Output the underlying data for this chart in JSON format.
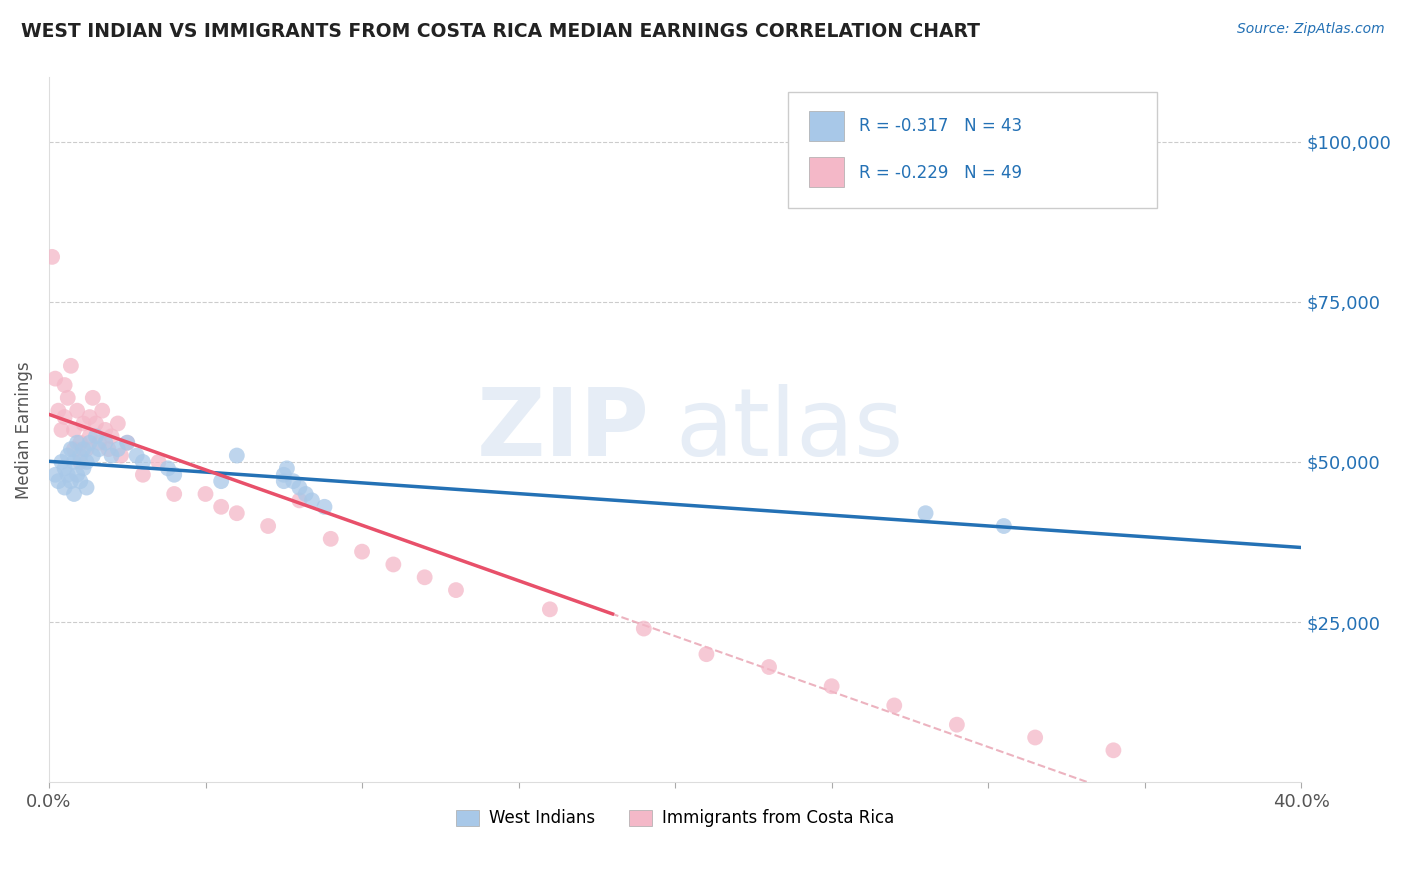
{
  "title": "WEST INDIAN VS IMMIGRANTS FROM COSTA RICA MEDIAN EARNINGS CORRELATION CHART",
  "source": "Source: ZipAtlas.com",
  "ylabel": "Median Earnings",
  "xlim": [
    0.0,
    0.4
  ],
  "ylim": [
    0,
    110000
  ],
  "color_blue": "#a8c8e8",
  "color_pink": "#f4b8c8",
  "color_blue_line": "#2471b5",
  "color_pink_line": "#e8506a",
  "color_dashed": "#e8a0b0",
  "watermark_zip": "ZIP",
  "watermark_atlas": "atlas",
  "legend_text1": "R = -0.317   N = 43",
  "legend_text2": "R = -0.229   N = 49",
  "west_indians_x": [
    0.002,
    0.003,
    0.004,
    0.005,
    0.005,
    0.006,
    0.006,
    0.007,
    0.007,
    0.008,
    0.008,
    0.009,
    0.009,
    0.01,
    0.01,
    0.011,
    0.011,
    0.012,
    0.012,
    0.013,
    0.014,
    0.015,
    0.016,
    0.018,
    0.02,
    0.022,
    0.025,
    0.028,
    0.03,
    0.038,
    0.04,
    0.055,
    0.06,
    0.075,
    0.075,
    0.076,
    0.078,
    0.08,
    0.082,
    0.084,
    0.088,
    0.28,
    0.305
  ],
  "west_indians_y": [
    48000,
    47000,
    50000,
    46000,
    49000,
    51000,
    48000,
    52000,
    47000,
    50000,
    45000,
    53000,
    48000,
    51000,
    47000,
    52000,
    49000,
    50000,
    46000,
    53000,
    51000,
    54000,
    52000,
    53000,
    51000,
    52000,
    53000,
    51000,
    50000,
    49000,
    48000,
    47000,
    51000,
    47000,
    48000,
    49000,
    47000,
    46000,
    45000,
    44000,
    43000,
    42000,
    40000
  ],
  "costa_rica_x": [
    0.001,
    0.002,
    0.003,
    0.004,
    0.005,
    0.005,
    0.006,
    0.007,
    0.008,
    0.008,
    0.009,
    0.01,
    0.01,
    0.011,
    0.012,
    0.013,
    0.013,
    0.014,
    0.015,
    0.016,
    0.017,
    0.018,
    0.019,
    0.02,
    0.022,
    0.023,
    0.025,
    0.03,
    0.035,
    0.04,
    0.05,
    0.055,
    0.06,
    0.07,
    0.08,
    0.09,
    0.1,
    0.11,
    0.12,
    0.13,
    0.16,
    0.19,
    0.21,
    0.23,
    0.25,
    0.27,
    0.29,
    0.315,
    0.34
  ],
  "costa_rica_y": [
    82000,
    63000,
    58000,
    55000,
    62000,
    57000,
    60000,
    65000,
    55000,
    52000,
    58000,
    53000,
    50000,
    56000,
    52000,
    57000,
    54000,
    60000,
    56000,
    53000,
    58000,
    55000,
    52000,
    54000,
    56000,
    51000,
    53000,
    48000,
    50000,
    45000,
    45000,
    43000,
    42000,
    40000,
    44000,
    38000,
    36000,
    34000,
    32000,
    30000,
    27000,
    24000,
    20000,
    18000,
    15000,
    12000,
    9000,
    7000,
    5000
  ]
}
